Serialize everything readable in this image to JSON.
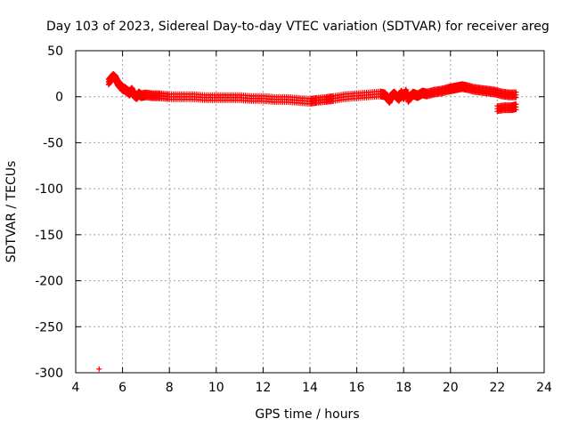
{
  "chart_data": {
    "type": "scatter",
    "title": "Day 103 of 2023, Sidereal Day-to-day VTEC variation (SDTVAR) for receiver areg",
    "xlabel": "GPS time / hours",
    "ylabel": "SDTVAR / TECUs",
    "xlim": [
      4,
      24
    ],
    "ylim": [
      -300,
      50
    ],
    "xticks": [
      4,
      6,
      8,
      10,
      12,
      14,
      16,
      18,
      20,
      22,
      24
    ],
    "yticks": [
      50,
      0,
      -50,
      -100,
      -150,
      -200,
      -250,
      -300
    ],
    "grid": true,
    "marker": "+",
    "color": "#ff0000",
    "series": [
      {
        "name": "SDTVAR",
        "points": [
          [
            5.0,
            -296
          ],
          [
            5.4,
            16
          ],
          [
            5.5,
            19
          ],
          [
            5.6,
            22
          ],
          [
            5.7,
            20
          ],
          [
            5.8,
            15
          ],
          [
            5.9,
            12
          ],
          [
            6.0,
            9
          ],
          [
            6.1,
            8
          ],
          [
            6.2,
            6
          ],
          [
            6.3,
            4
          ],
          [
            6.4,
            7
          ],
          [
            6.5,
            2
          ],
          [
            6.6,
            0
          ],
          [
            6.7,
            3
          ],
          [
            6.8,
            1
          ],
          [
            7.0,
            2
          ],
          [
            7.3,
            1
          ],
          [
            7.6,
            1
          ],
          [
            8.0,
            0
          ],
          [
            8.5,
            0
          ],
          [
            9.0,
            0
          ],
          [
            9.5,
            -1
          ],
          [
            10.0,
            -1
          ],
          [
            10.5,
            -1
          ],
          [
            11.0,
            -1
          ],
          [
            11.5,
            -2
          ],
          [
            12.0,
            -2
          ],
          [
            12.5,
            -3
          ],
          [
            13.0,
            -3
          ],
          [
            13.5,
            -4
          ],
          [
            14.0,
            -5
          ],
          [
            14.3,
            -4
          ],
          [
            14.7,
            -3
          ],
          [
            15.0,
            -2
          ],
          [
            15.5,
            0
          ],
          [
            16.0,
            1
          ],
          [
            16.5,
            2
          ],
          [
            17.0,
            3
          ],
          [
            17.2,
            2
          ],
          [
            17.4,
            -4
          ],
          [
            17.5,
            1
          ],
          [
            17.6,
            3
          ],
          [
            17.8,
            -2
          ],
          [
            17.9,
            4
          ],
          [
            18.0,
            0
          ],
          [
            18.1,
            5
          ],
          [
            18.2,
            -3
          ],
          [
            18.4,
            3
          ],
          [
            18.6,
            1
          ],
          [
            18.8,
            4
          ],
          [
            19.0,
            3
          ],
          [
            19.3,
            5
          ],
          [
            19.6,
            6
          ],
          [
            19.9,
            8
          ],
          [
            20.1,
            9
          ],
          [
            20.3,
            10
          ],
          [
            20.5,
            11
          ],
          [
            20.7,
            10
          ],
          [
            21.0,
            8
          ],
          [
            21.3,
            7
          ],
          [
            21.6,
            6
          ],
          [
            21.9,
            5
          ],
          [
            22.2,
            3
          ],
          [
            22.5,
            2
          ],
          [
            22.8,
            2
          ],
          [
            22.0,
            -13
          ],
          [
            22.3,
            -12
          ],
          [
            22.6,
            -12
          ],
          [
            22.8,
            -11
          ]
        ]
      }
    ]
  }
}
